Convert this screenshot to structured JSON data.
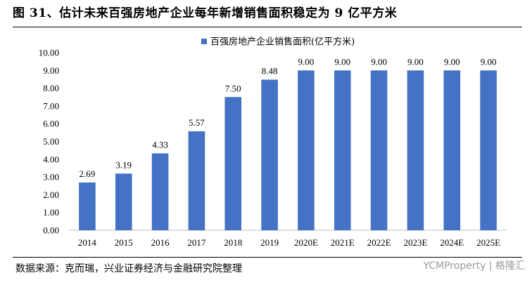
{
  "figure": {
    "title": "图 31、估计未来百强房地产企业每年新增销售面积稳定为 9 亿平方米",
    "source": "数据来源：克而瑞，兴业证券经济与金融研究院整理",
    "watermark": "YCMProperty | 格隆汇"
  },
  "chart_data": {
    "type": "bar",
    "categories": [
      "2014",
      "2015",
      "2016",
      "2017",
      "2018",
      "2019",
      "2020E",
      "2021E",
      "2022E",
      "2023E",
      "2024E",
      "2025E"
    ],
    "series": [
      {
        "name": "百强房地产企业销售面积(亿平方米)",
        "values": [
          2.69,
          3.19,
          4.33,
          5.57,
          7.5,
          8.48,
          9.0,
          9.0,
          9.0,
          9.0,
          9.0,
          9.0
        ],
        "color": "#4472C4"
      }
    ],
    "data_labels": [
      "2.69",
      "3.19",
      "4.33",
      "5.57",
      "7.50",
      "8.48",
      "9.00",
      "9.00",
      "9.00",
      "9.00",
      "9.00",
      "9.00"
    ],
    "yticks": [
      "0.00",
      "1.00",
      "2.00",
      "3.00",
      "4.00",
      "5.00",
      "6.00",
      "7.00",
      "8.00",
      "9.00",
      "10.00"
    ],
    "ylim": [
      0,
      10
    ],
    "grid": false,
    "legend": "top-center"
  }
}
